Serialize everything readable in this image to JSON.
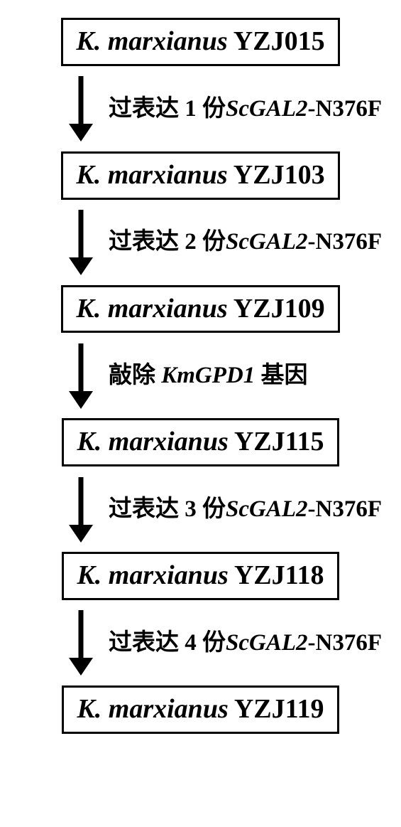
{
  "diagram": {
    "type": "flowchart",
    "direction": "top-down",
    "background_color": "#ffffff",
    "border_color": "#000000",
    "border_width": 3,
    "text_color": "#000000",
    "species_name": "K. marxianus",
    "nodes": [
      {
        "strain": "YZJ015"
      },
      {
        "strain": "YZJ103"
      },
      {
        "strain": "YZJ109"
      },
      {
        "strain": "YZJ115"
      },
      {
        "strain": "YZJ118"
      },
      {
        "strain": "YZJ119"
      }
    ],
    "steps": [
      {
        "prefix": "过表达 1 份",
        "gene": "ScGAL2",
        "suffix": "-N376F"
      },
      {
        "prefix": "过表达 2 份",
        "gene": "ScGAL2",
        "suffix": "-N376F"
      },
      {
        "prefix": "敲除 ",
        "gene": "KmGPD1",
        "suffix": " 基因"
      },
      {
        "prefix": "过表达 3 份",
        "gene": "ScGAL2",
        "suffix": "-N376F"
      },
      {
        "prefix": "过表达 4 份",
        "gene": "ScGAL2",
        "suffix": "-N376F"
      }
    ],
    "arrow": {
      "length": 95,
      "stroke_width": 7,
      "head_width": 34,
      "head_height": 26,
      "color": "#000000"
    },
    "fonts": {
      "node_fontsize": 38,
      "label_fontsize": 33,
      "weight": "bold"
    }
  }
}
